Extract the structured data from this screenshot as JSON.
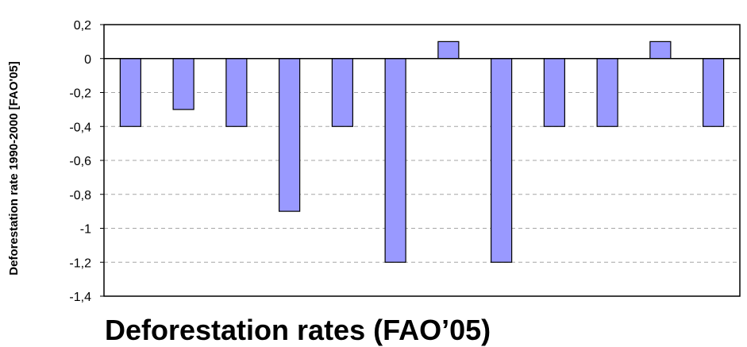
{
  "chart_data": {
    "type": "bar",
    "title": "Deforestation rates (FAO’05)",
    "ylabel": "Deforestation rate 1990-2000  [FAO'05]",
    "xlabel": "",
    "ylim": [
      -1.4,
      0.2
    ],
    "yticks": [
      "0,2",
      "0",
      "-0,2",
      "-0,4",
      "-0,6",
      "-0,8",
      "-1",
      "-1,2",
      "-1,4"
    ],
    "ytick_values": [
      0.2,
      0,
      -0.2,
      -0.4,
      -0.6,
      -0.8,
      -1,
      -1.2,
      -1.4
    ],
    "categories": [
      "",
      "",
      "",
      "",
      "",
      "",
      "",
      "",
      "",
      "",
      "",
      ""
    ],
    "values": [
      -0.4,
      -0.3,
      -0.4,
      -0.9,
      -0.4,
      -1.2,
      0.1,
      -1.2,
      -0.4,
      -0.4,
      0.1,
      -0.4
    ],
    "grid": true,
    "bar_color": "#9999ff",
    "bar_edge_color": "#000000",
    "grid_color": "#a6a6a6"
  }
}
